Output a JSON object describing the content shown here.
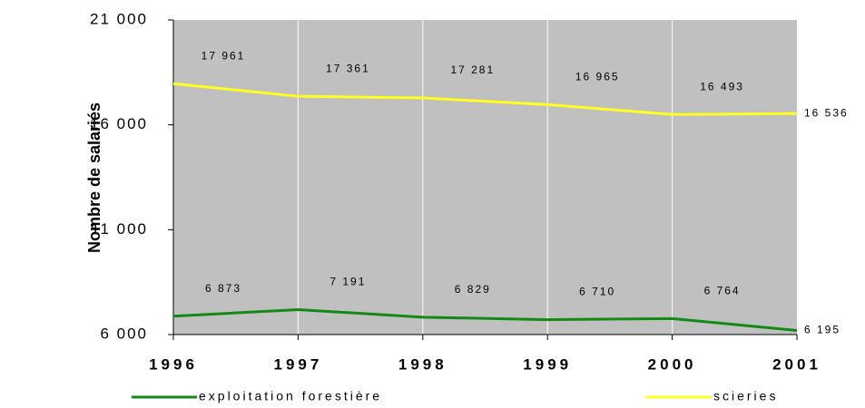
{
  "chart_data": {
    "type": "line",
    "y_label": "Nombre de salariés",
    "x": [
      "1996",
      "1997",
      "1998",
      "1999",
      "2000",
      "2001"
    ],
    "series": [
      {
        "name": "exploitation forestière",
        "color": "#138a13",
        "values": [
          6873,
          7191,
          6829,
          6710,
          6764,
          6195
        ],
        "value_labels": [
          "6 873",
          "7 191",
          "6 829",
          "6 710",
          "6 764",
          "6 195"
        ]
      },
      {
        "name": "scieries",
        "color": "#ffff22",
        "values": [
          17961,
          17361,
          17281,
          16965,
          16493,
          16536
        ],
        "value_labels": [
          "17 961",
          "17 361",
          "17 281",
          "16 965",
          "16 493",
          "16 536"
        ]
      }
    ],
    "ylim": [
      6000,
      21000
    ],
    "yticks": [
      {
        "value": 6000,
        "label": "6 000"
      },
      {
        "value": 11000,
        "label": "11 000"
      },
      {
        "value": 16000,
        "label": "16 000"
      },
      {
        "value": 21000,
        "label": "21 000"
      }
    ],
    "background": "#c0c0c0",
    "grid": true
  }
}
